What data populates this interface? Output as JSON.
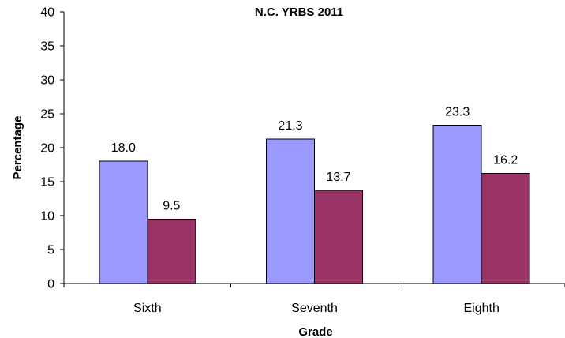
{
  "chart_data": {
    "type": "bar",
    "title": "N.C. YRBS 2011",
    "xlabel": "Grade",
    "ylabel": "Percentage",
    "categories": [
      "Sixth",
      "Seventh",
      "Eighth"
    ],
    "series": [
      {
        "values": [
          18.0,
          21.3,
          23.3
        ],
        "labels": [
          "18.0",
          "21.3",
          "23.3"
        ],
        "color": "#9999ff"
      },
      {
        "values": [
          9.5,
          13.7,
          16.2
        ],
        "labels": [
          "9.5",
          "13.7",
          "16.2"
        ],
        "color": "#993366"
      }
    ],
    "ylim": [
      0,
      40
    ],
    "yticks": [
      "0",
      "5",
      "10",
      "15",
      "20",
      "25",
      "30",
      "35",
      "40"
    ],
    "grid": false,
    "legend": "none"
  }
}
